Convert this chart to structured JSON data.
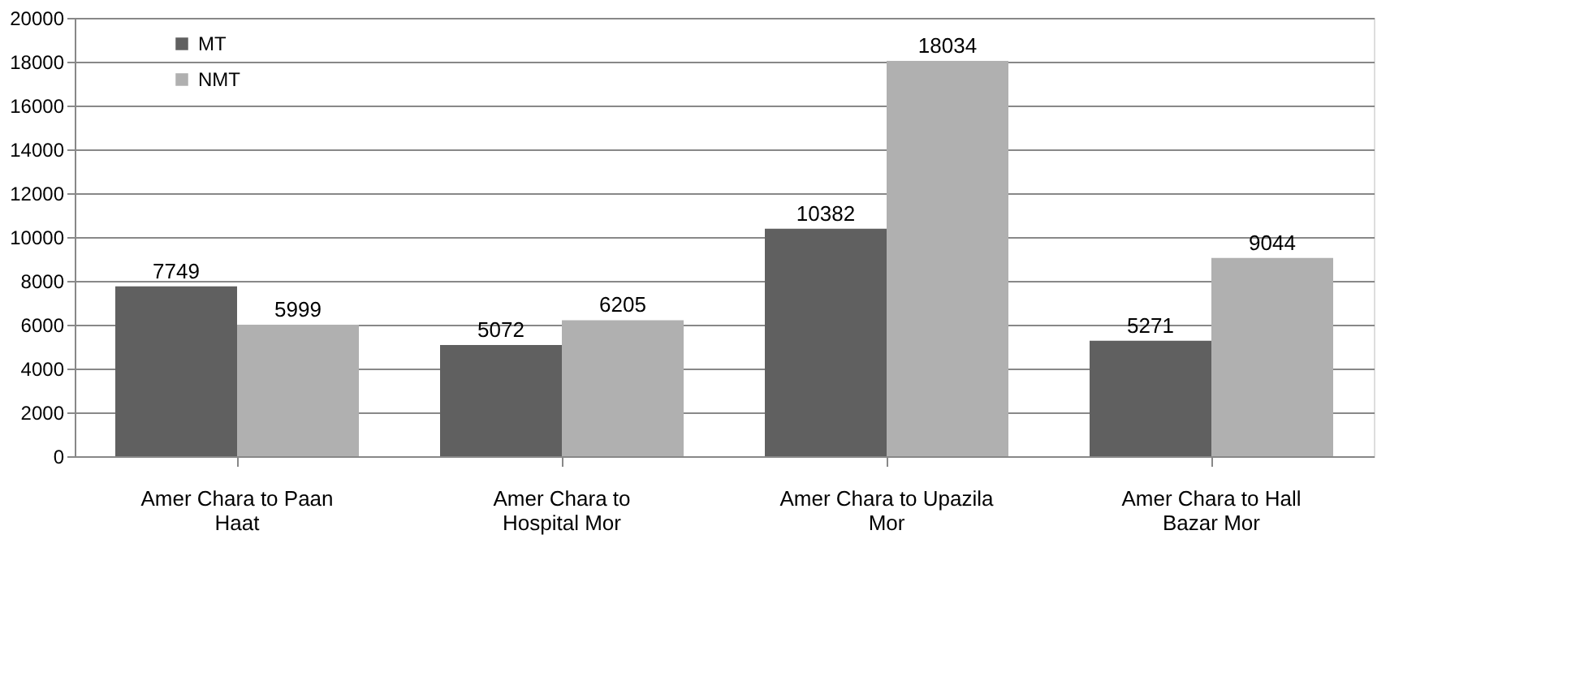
{
  "chart_data": {
    "type": "bar",
    "categories": [
      "Amer Chara to Paan Haat",
      "Amer Chara to Hospital Mor",
      "Amer Chara to Upazila Mor",
      "Amer Chara to Hall Bazar Mor"
    ],
    "series": [
      {
        "name": "MT",
        "color": "#606060",
        "values": [
          7749,
          5072,
          10382,
          5271
        ]
      },
      {
        "name": "NMT",
        "color": "#b0b0b0",
        "values": [
          5999,
          6205,
          18034,
          9044
        ]
      }
    ],
    "ylim": [
      0,
      20000
    ],
    "yticks": [
      0,
      2000,
      4000,
      6000,
      8000,
      10000,
      12000,
      14000,
      16000,
      18000,
      20000
    ],
    "grid": "y",
    "legend": "top left",
    "data_labels": true
  }
}
